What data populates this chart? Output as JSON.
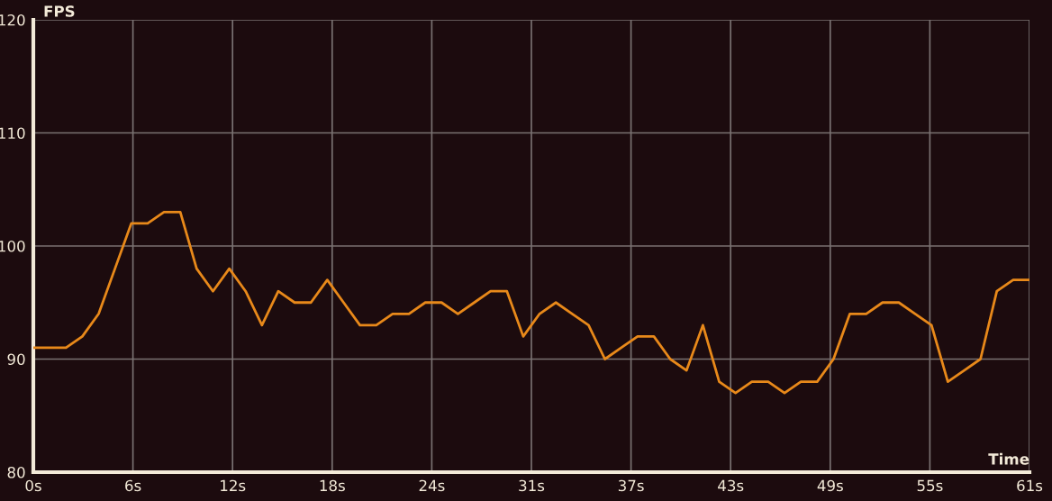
{
  "chart_data": {
    "type": "line",
    "xlabel": "Time",
    "ylabel": "FPS",
    "x": [
      0,
      1,
      2,
      3,
      4,
      5,
      6,
      7,
      8,
      9,
      10,
      11,
      12,
      13,
      14,
      15,
      16,
      17,
      18,
      19,
      20,
      21,
      22,
      23,
      24,
      25,
      26,
      27,
      28,
      29,
      30,
      31,
      32,
      33,
      34,
      35,
      36,
      37,
      38,
      39,
      40,
      41,
      42,
      43,
      44,
      45,
      46,
      47,
      48,
      49,
      50,
      51,
      52,
      53,
      54,
      55,
      56,
      57,
      58,
      59,
      60,
      61
    ],
    "series": [
      {
        "color": "#e8891a",
        "values": [
          91,
          91,
          91,
          92,
          94,
          98,
          102,
          102,
          103,
          103,
          98,
          96,
          98,
          96,
          93,
          96,
          95,
          95,
          97,
          95,
          93,
          93,
          94,
          94,
          95,
          95,
          94,
          95,
          96,
          96,
          92,
          94,
          95,
          94,
          93,
          90,
          91,
          92,
          92,
          90,
          89,
          93,
          88,
          87,
          88,
          88,
          87,
          88,
          88,
          90,
          94,
          94,
          95,
          95,
          94,
          93,
          88,
          89,
          90,
          96,
          97,
          97
        ]
      }
    ],
    "xlim": [
      0,
      61
    ],
    "ylim": [
      80,
      120
    ],
    "xticks": [
      {
        "value": 0,
        "label": "0s"
      },
      {
        "value": 6.1,
        "label": "6s"
      },
      {
        "value": 12.2,
        "label": "12s"
      },
      {
        "value": 18.3,
        "label": "18s"
      },
      {
        "value": 24.4,
        "label": "24s"
      },
      {
        "value": 30.5,
        "label": "31s"
      },
      {
        "value": 36.6,
        "label": "37s"
      },
      {
        "value": 42.7,
        "label": "43s"
      },
      {
        "value": 48.8,
        "label": "49s"
      },
      {
        "value": 54.9,
        "label": "55s"
      },
      {
        "value": 61,
        "label": "61s"
      }
    ],
    "yticks": [
      80,
      90,
      100,
      110,
      120
    ],
    "grid": true,
    "marker": "none",
    "line_style": "solid"
  }
}
